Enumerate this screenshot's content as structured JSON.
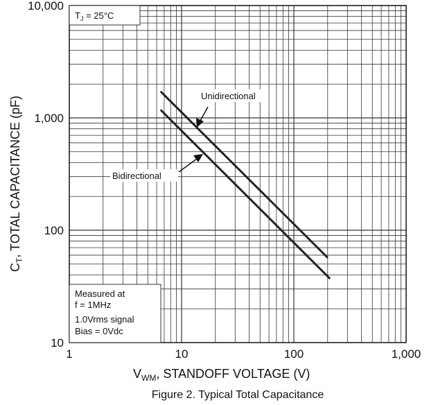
{
  "chart_data": {
    "type": "line",
    "x_scale": "log",
    "y_scale": "log",
    "xlim": [
      1,
      1000
    ],
    "ylim": [
      10,
      10000
    ],
    "xticks": [
      1,
      10,
      100,
      1000
    ],
    "xtick_labels": [
      "1",
      "10",
      "100",
      "1,000"
    ],
    "yticks": [
      10,
      100,
      1000,
      10000
    ],
    "ytick_labels": [
      "10",
      "100",
      "1,000",
      "10,000"
    ],
    "xlabel_main": "V",
    "xlabel_sub": "WM",
    "xlabel_rest": ", STANDOFF VOLTAGE (V)",
    "ylabel_main": "C",
    "ylabel_sub": "T",
    "ylabel_rest": ", TOTAL CAPACITANCE (pF)",
    "grid": true,
    "series": [
      {
        "name": "Unidirectional",
        "x": [
          6.5,
          200
        ],
        "y": [
          1720,
          57
        ]
      },
      {
        "name": "Bidirectional",
        "x": [
          6.5,
          210
        ],
        "y": [
          1180,
          37
        ]
      }
    ],
    "condition_main": "T",
    "condition_sub": "J",
    "condition_rest": " = 25°C",
    "notes": [
      "Measured at",
      "f = 1MHz",
      "1.0Vrms signal",
      "Bias = 0Vdc"
    ],
    "caption": "Figure 2. Typical Total Capacitance",
    "line_color": "#222222",
    "grid_color": "#333333"
  }
}
